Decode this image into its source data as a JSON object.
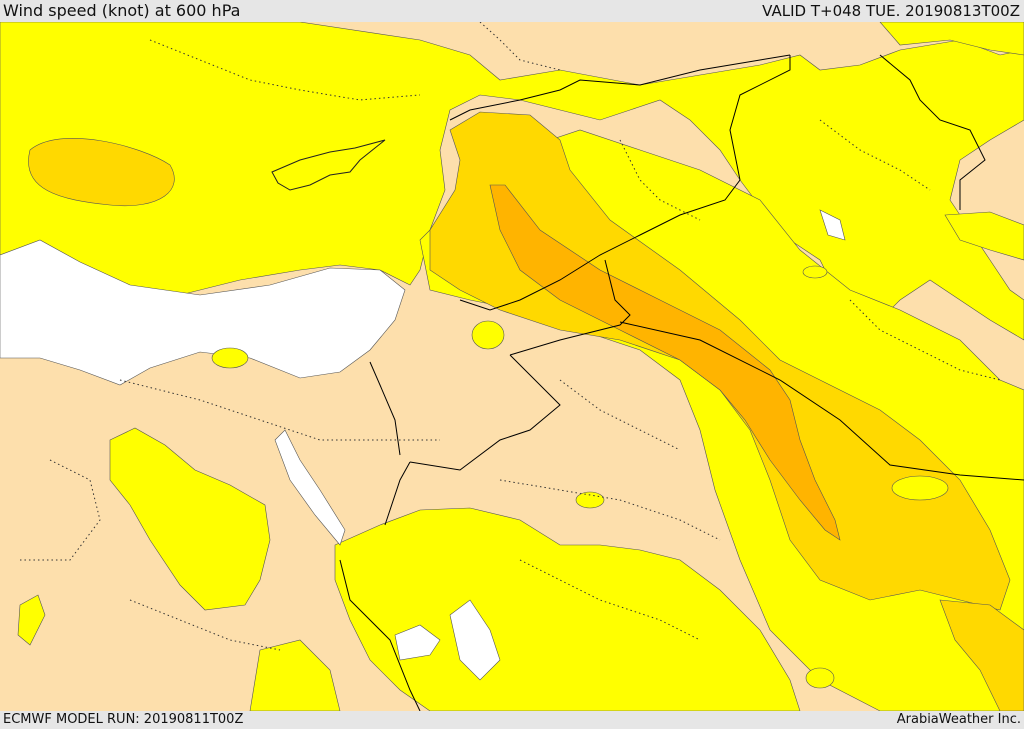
{
  "header": {
    "title": "Wind speed (knot) at 600 hPa",
    "valid": "VALID T+048 TUE. 20190813T00Z"
  },
  "footer": {
    "model_run": "ECMWF MODEL RUN: 20190811T00Z",
    "credit": "ArabiaWeather Inc."
  },
  "colors": {
    "land_base": "#fddfac",
    "band_1": "#ffff00",
    "band_2": "#ffd900",
    "band_3": "#ffb400",
    "sea_calm": "#ffffff",
    "border_line": "#000000"
  },
  "icons": [
    "wind-speed-map"
  ]
}
